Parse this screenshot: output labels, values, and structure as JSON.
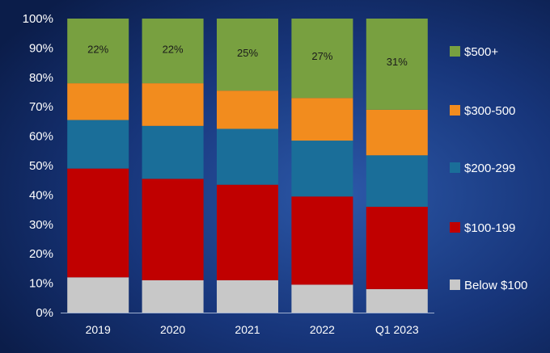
{
  "chart_data": {
    "type": "bar",
    "stacked": true,
    "title": "",
    "xlabel": "",
    "ylabel": "",
    "ylim": [
      0,
      100
    ],
    "y_ticks": [
      "0%",
      "10%",
      "20%",
      "30%",
      "40%",
      "50%",
      "60%",
      "70%",
      "80%",
      "90%",
      "100%"
    ],
    "categories": [
      "2019",
      "2020",
      "2021",
      "2022",
      "Q1 2023"
    ],
    "legend_position": "right",
    "series": [
      {
        "name": "Below $100",
        "color": "#c8c8c8",
        "values": [
          12,
          11,
          11,
          9.5,
          8
        ]
      },
      {
        "name": "$100-199",
        "color": "#c00000",
        "values": [
          37,
          34.5,
          32.5,
          30,
          28
        ]
      },
      {
        "name": "$200-299",
        "color": "#1a6e99",
        "values": [
          16.5,
          18,
          19,
          19,
          17.5
        ]
      },
      {
        "name": "$300-500",
        "color": "#f28c1e",
        "values": [
          12.5,
          14.5,
          13,
          14.5,
          15.5
        ]
      },
      {
        "name": "$500+",
        "color": "#78a040",
        "values": [
          22,
          22,
          24.5,
          27,
          31
        ]
      }
    ],
    "data_labels": [
      "22%",
      "22%",
      "25%",
      "27%",
      "31%"
    ]
  }
}
